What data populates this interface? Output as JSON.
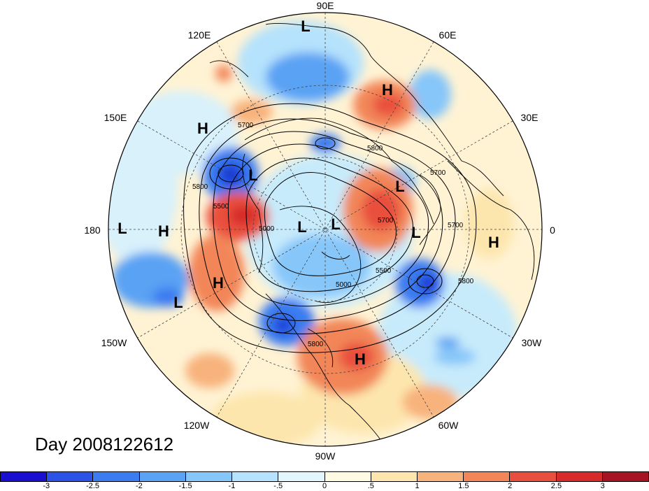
{
  "title": "Day 2008122612",
  "longitude_labels": [
    "90E",
    "60E",
    "30E",
    "0",
    "30W",
    "60W",
    "90W",
    "120W",
    "150W",
    "180",
    "150E",
    "120E"
  ],
  "pressure_centers": [
    {
      "label": "L"
    },
    {
      "label": "H"
    },
    {
      "label": "H"
    },
    {
      "label": "L"
    },
    {
      "label": "L"
    },
    {
      "label": "L"
    },
    {
      "label": "L"
    },
    {
      "label": "L"
    },
    {
      "label": "L"
    },
    {
      "label": "H"
    },
    {
      "label": "H"
    },
    {
      "label": "L"
    },
    {
      "label": "H"
    },
    {
      "label": "H"
    }
  ],
  "contour_labels": [
    "5700",
    "5800",
    "5500",
    "5000",
    "5700",
    "5800",
    "5500",
    "5000",
    "5800",
    "5700",
    "5800",
    "5700"
  ],
  "colorbar": {
    "tick_labels": [
      "-3",
      "-2.5",
      "-2",
      "-1.5",
      "-1",
      "-.5",
      "0",
      ".5",
      "1",
      "1.5",
      "2",
      "2.5",
      "3"
    ],
    "colors": [
      "#1a0fd0",
      "#2c52e6",
      "#3b7cf0",
      "#5aa2f4",
      "#86c6f9",
      "#b5e2fc",
      "#e3f6fd",
      "#fffbe2",
      "#fde6ad",
      "#f8b27c",
      "#f28658",
      "#e94f3d",
      "#d72a2a",
      "#a61424"
    ]
  },
  "field_colors": {
    "strong_neg": "#2f5fe0",
    "neg": "#5aa2f4",
    "weak_neg": "#b5e2fc",
    "weak_pos": "#fde6ad",
    "pos": "#f28658",
    "strong_pos": "#d72a2a"
  }
}
